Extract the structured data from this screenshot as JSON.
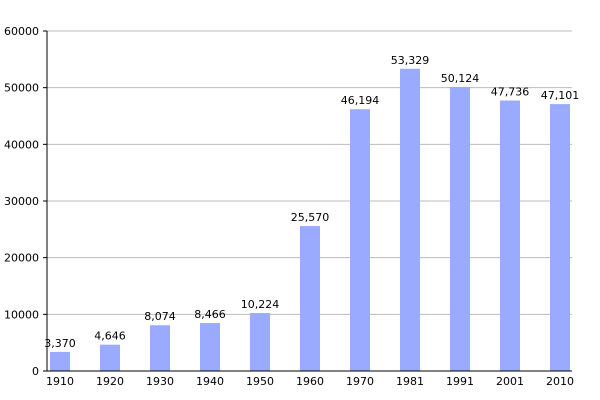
{
  "chart_data": {
    "type": "bar",
    "categories": [
      "1910",
      "1920",
      "1930",
      "1940",
      "1950",
      "1960",
      "1970",
      "1981",
      "1991",
      "2001",
      "2010"
    ],
    "values": [
      3370,
      4646,
      8074,
      8466,
      10224,
      25570,
      46194,
      53329,
      50124,
      47736,
      47101
    ],
    "value_labels": [
      "3,370",
      "4,646",
      "8,074",
      "8,466",
      "10,224",
      "25,570",
      "46,194",
      "53,329",
      "50,124",
      "47,736",
      "47,101"
    ],
    "color": "#99aaff",
    "ylim": [
      0,
      60000
    ],
    "yticks": [
      0,
      10000,
      20000,
      30000,
      40000,
      50000,
      60000
    ],
    "grid": true
  }
}
